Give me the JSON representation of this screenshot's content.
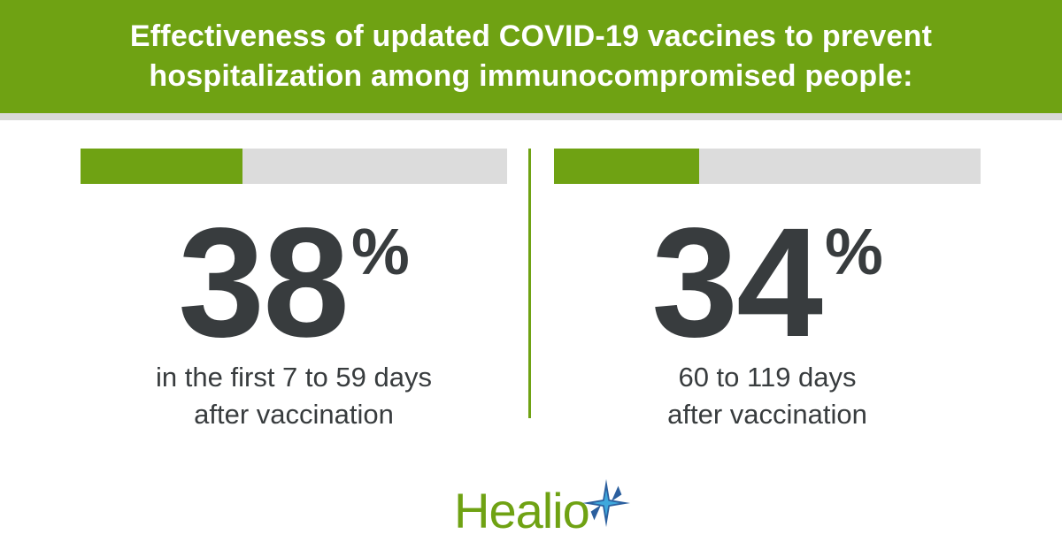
{
  "header": {
    "title_line1": "Effectiveness of updated COVID-19 vaccines to prevent",
    "title_line2": "hospitalization among immunocompromised people:"
  },
  "stats": [
    {
      "value": "38",
      "unit": "%",
      "fill_fraction": 0.38,
      "caption_line1": "in the first 7 to 59 days",
      "caption_line2": "after vaccination"
    },
    {
      "value": "34",
      "unit": "%",
      "fill_fraction": 0.34,
      "caption_line1": "60 to 119 days",
      "caption_line2": "after vaccination"
    }
  ],
  "logo": {
    "brand_name": "Healio",
    "icon": "star-icon"
  },
  "colors": {
    "accent": "#6fa213",
    "track": "#dcdcdc",
    "text": "#383c3e",
    "star_blue": "#2b5f9e",
    "star_light": "#3fa8dc"
  }
}
